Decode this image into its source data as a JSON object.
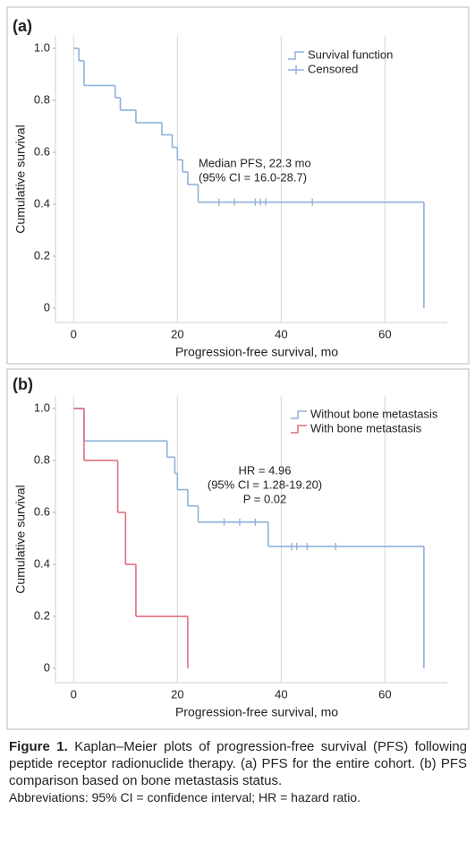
{
  "chart_data": [
    {
      "type": "step",
      "title": "(a)",
      "xlabel": "Progression-free survival, mo",
      "ylabel": "Cumulative survival",
      "xlim": [
        -3.5,
        72
      ],
      "ylim": [
        -0.055,
        1.048
      ],
      "xticks": [
        0,
        20,
        40,
        60
      ],
      "yticks": [
        {
          "value": 1,
          "label": "1.0"
        },
        0.8,
        0.6,
        0.4,
        0.2,
        0
      ],
      "grid": true,
      "censored_label": "Censored",
      "annotations": [
        "Median PFS, 22.3 mo",
        "(95% CI = 16.0-28.7)"
      ],
      "series": [
        {
          "name": "Survival function",
          "color": "#8fb2d9",
          "x": [
            0,
            1,
            2,
            8,
            9,
            12,
            17,
            19,
            20,
            21,
            22,
            24,
            67.5
          ],
          "values": [
            1.0,
            0.952,
            0.857,
            0.81,
            0.762,
            0.714,
            0.667,
            0.619,
            0.571,
            0.524,
            0.476,
            0.408,
            0
          ],
          "censored_x": [
            28,
            31,
            35,
            36,
            37,
            46
          ],
          "censored_y": [
            0.408,
            0.408,
            0.408,
            0.408,
            0.408,
            0.408
          ]
        }
      ]
    },
    {
      "type": "step",
      "title": "(b)",
      "xlabel": "Progression-free survival, mo",
      "ylabel": "Cumulative survival",
      "xlim": [
        -3.5,
        72
      ],
      "ylim": [
        -0.055,
        1.048
      ],
      "xticks": [
        0,
        20,
        40,
        60
      ],
      "yticks": [
        {
          "value": 1,
          "label": "1.0"
        },
        0.8,
        0.6,
        0.4,
        0.2,
        0
      ],
      "grid": true,
      "annotations": [
        "HR = 4.96",
        "(95% CI = 1.28-19.20)",
        "P = 0.02"
      ],
      "series": [
        {
          "name": "Without bone metastasis",
          "color": "#8fb2d9",
          "x": [
            0,
            2,
            18,
            19.5,
            20,
            22,
            24,
            37.5,
            67.5
          ],
          "values": [
            1.0,
            0.875,
            0.8125,
            0.75,
            0.6875,
            0.625,
            0.5625,
            0.469,
            0
          ],
          "censored_x": [
            29,
            32,
            35,
            42,
            43,
            45,
            50.5
          ],
          "censored_y": [
            0.5625,
            0.5625,
            0.5625,
            0.469,
            0.469,
            0.469,
            0.469
          ]
        },
        {
          "name": "With bone metastasis",
          "color": "#e0707f",
          "x": [
            0,
            2,
            8.5,
            10,
            12,
            22
          ],
          "values": [
            1.0,
            0.8,
            0.6,
            0.4,
            0.2,
            0
          ]
        }
      ]
    }
  ],
  "caption": {
    "label": "Figure 1.",
    "text": "Kaplan–Meier plots of progression-free survival (PFS) following peptide receptor radionuclide therapy. (a) PFS for the entire cohort. (b) PFS comparison based on bone metastasis status.",
    "abbreviations": "Abbreviations: 95% CI = confidence interval; HR = hazard ratio."
  }
}
